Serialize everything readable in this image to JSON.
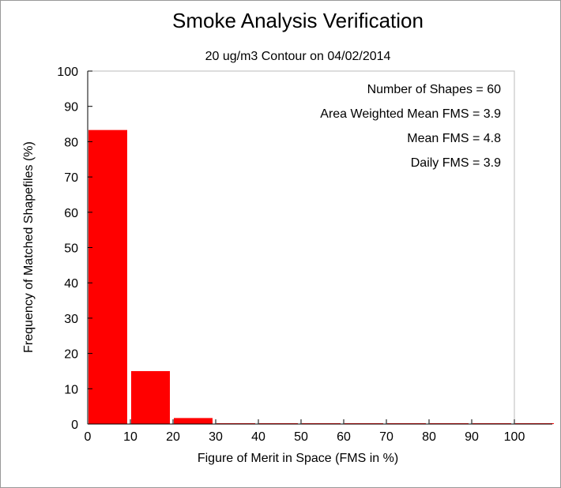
{
  "chart_data": {
    "type": "bar",
    "title": "Smoke Analysis Verification",
    "subtitle": "20 ug/m3 Contour on 04/02/2014",
    "xlabel": "Figure of Merit in Space (FMS in %)",
    "ylabel": "Frequency of Matched Shapefiles (%)",
    "xlim": [
      0,
      100
    ],
    "ylim": [
      0,
      100
    ],
    "x_ticks": [
      "0",
      "10",
      "20",
      "30",
      "40",
      "50",
      "60",
      "70",
      "80",
      "90",
      "100"
    ],
    "y_ticks": [
      "0",
      "10",
      "20",
      "30",
      "40",
      "50",
      "60",
      "70",
      "80",
      "90",
      "100"
    ],
    "bin_width": 10,
    "bins": [
      0,
      10,
      20,
      30,
      40,
      50,
      60,
      70,
      80,
      90,
      100
    ],
    "values": [
      83.3,
      15.0,
      1.7,
      0,
      0,
      0,
      0,
      0,
      0,
      0,
      0
    ],
    "bar_color": "#ff0000",
    "grid": false,
    "annotations": [
      "Number of Shapes = 60",
      "Area Weighted Mean FMS = 3.9",
      "Mean FMS = 4.8",
      "Daily FMS = 3.9"
    ]
  }
}
